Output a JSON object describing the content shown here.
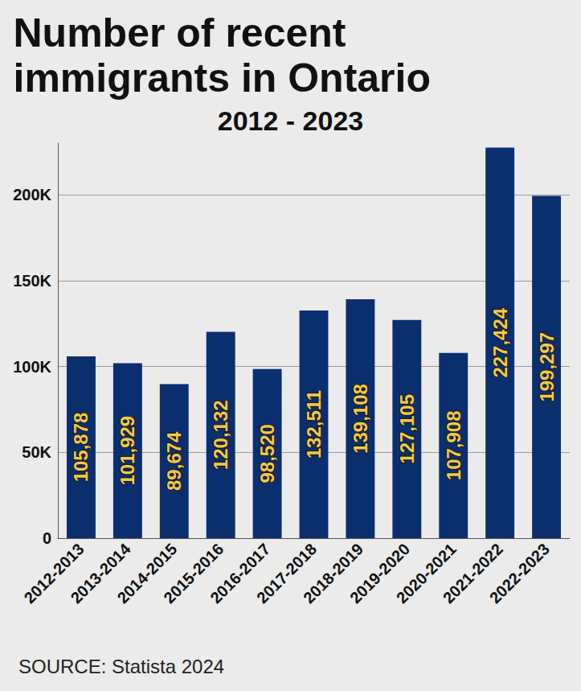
{
  "chart_data": {
    "type": "bar",
    "title": "Number of recent immigrants in Ontario",
    "subtitle": "2012 - 2023",
    "source": "SOURCE: Statista 2024",
    "categories": [
      "2012-2013",
      "2013-2014",
      "2014-2015",
      "2015-2016",
      "2016-2017",
      "2017-2018",
      "2018-2019",
      "2019-2020",
      "2020-2021",
      "2021-2022",
      "2022-2023"
    ],
    "values": [
      105878,
      101929,
      89674,
      120132,
      98520,
      132511,
      139108,
      127105,
      107908,
      227424,
      199297
    ],
    "value_labels": [
      "105,878",
      "101,929",
      "89,674",
      "120,132",
      "98,520",
      "132,511",
      "139,108",
      "127,105",
      "107,908",
      "227,424",
      "199,297"
    ],
    "color": "#0b2f6e",
    "ylim": [
      0,
      230000
    ],
    "yticks": [
      0,
      {
        "value": 50000,
        "label": "50K"
      },
      {
        "value": 100000,
        "label": "100K"
      },
      {
        "value": 150000,
        "label": "150K"
      },
      {
        "value": 200000,
        "label": "200K"
      }
    ],
    "grid": true,
    "data_labels": true
  }
}
